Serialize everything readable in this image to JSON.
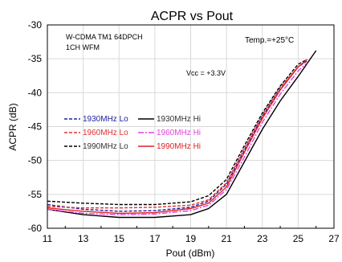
{
  "chart_data": {
    "type": "line",
    "title": "ACPR vs Pout",
    "xlabel": "Pout (dBm)",
    "ylabel": "ACPR (dB)",
    "xlim": [
      11,
      27
    ],
    "ylim": [
      -60,
      -30
    ],
    "xticks": [
      "11",
      "13",
      "15",
      "17",
      "19",
      "21",
      "23",
      "25",
      "27"
    ],
    "yticks": [
      "-30",
      "-35",
      "-40",
      "-45",
      "-50",
      "-55",
      "-60"
    ],
    "grid": true,
    "annotations": [
      "W-CDMA TM1 64DPCH",
      "1CH WFM",
      "Temp.=+25°C",
      "Vcc = +3.3V"
    ],
    "legend_position": "center-left",
    "series": [
      {
        "name": "1930MHz Lo",
        "color": "#2020a0",
        "dash": "dashed",
        "x": [
          11,
          13,
          15,
          17,
          19,
          20,
          21,
          22,
          23,
          24,
          25,
          25.5
        ],
        "y": [
          -56.5,
          -57.2,
          -57.5,
          -57.4,
          -56.9,
          -56,
          -53.5,
          -48.5,
          -43.5,
          -39.5,
          -36.2,
          -35.3
        ]
      },
      {
        "name": "1960MHz Lo",
        "color": "#e03030",
        "dash": "dashed",
        "x": [
          11,
          13,
          15,
          17,
          19,
          20,
          21,
          22,
          23,
          24,
          25,
          25.3
        ],
        "y": [
          -56.8,
          -57,
          -57,
          -56.9,
          -56.6,
          -55.8,
          -53.3,
          -48.2,
          -43.3,
          -39.2,
          -36.2,
          -35.6
        ]
      },
      {
        "name": "1990MHz Lo",
        "color": "#000000",
        "dash": "dashed",
        "x": [
          11,
          13,
          15,
          17,
          19,
          20,
          21,
          22,
          23,
          24,
          25,
          25.5
        ],
        "y": [
          -56,
          -56.3,
          -56.5,
          -56.5,
          -56.1,
          -55.2,
          -52.8,
          -47.8,
          -43,
          -39,
          -35.8,
          -35.1
        ]
      },
      {
        "name": "1930MHz Hi",
        "color": "#000000",
        "dash": "solid",
        "x": [
          11,
          13,
          15,
          17,
          19,
          20,
          21,
          22,
          23,
          24,
          25,
          26
        ],
        "y": [
          -57.2,
          -58,
          -58.4,
          -58.4,
          -58,
          -57.1,
          -55,
          -50.2,
          -45.4,
          -41.2,
          -37.6,
          -33.8
        ]
      },
      {
        "name": "1960MHz Hi",
        "color": "#e040e0",
        "dash": "dashdot",
        "x": [
          11,
          13,
          15,
          17,
          19,
          20,
          21,
          22,
          23,
          24,
          25,
          25.5
        ],
        "y": [
          -57.2,
          -57.8,
          -58,
          -57.9,
          -57.4,
          -56.6,
          -54.3,
          -49.5,
          -44.4,
          -40.2,
          -36.8,
          -35.6
        ]
      },
      {
        "name": "1990MHz Hi",
        "color": "#e02020",
        "dash": "solid",
        "x": [
          11,
          13,
          15,
          17,
          19,
          20,
          21,
          22,
          23,
          24,
          25,
          25.5
        ],
        "y": [
          -57,
          -57.5,
          -57.8,
          -57.7,
          -57.1,
          -56.3,
          -53.9,
          -48.8,
          -43.8,
          -39.6,
          -36.2,
          -35.1
        ]
      }
    ]
  }
}
